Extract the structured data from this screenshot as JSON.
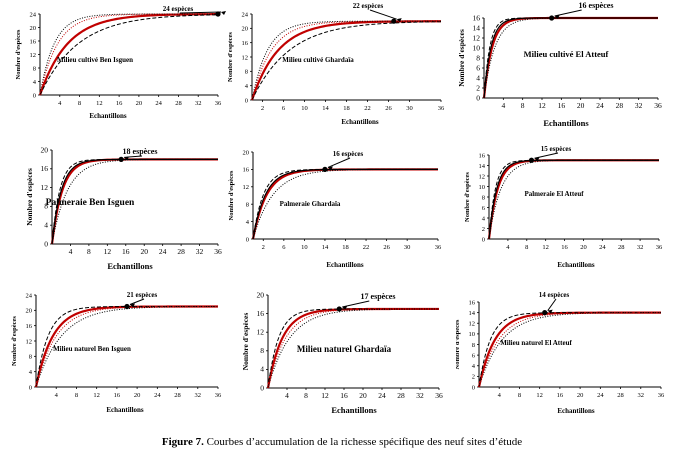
{
  "figure": {
    "caption_label": "Figure 7.",
    "caption_text": " Courbes d’accumulation de la richesse spécifique des neuf sites d’étude"
  },
  "colors": {
    "observed": "#c00000",
    "estimator1": "#000000",
    "estimator2": "#000000",
    "estimator3": "#c00000",
    "axis": "#000000"
  },
  "chart_data": [
    {
      "type": "line",
      "title": "Milieu cultivé Ben Isguen",
      "xlabel": "Echantillons",
      "ylabel": "Nombre d'espèces",
      "xlim": [
        0,
        36
      ],
      "xticks": [
        4,
        8,
        12,
        16,
        20,
        24,
        28,
        32,
        36
      ],
      "ylim": [
        0,
        24
      ],
      "yticks": [
        0,
        4,
        8,
        12,
        16,
        20,
        24
      ],
      "plateau": 24,
      "point": [
        36,
        24
      ],
      "annotation": "24 espèces",
      "series": [
        {
          "name": "observed",
          "style": "solid-red",
          "k": 0.18
        },
        {
          "name": "estimator 1",
          "style": "dashed-black",
          "k": 0.13
        },
        {
          "name": "estimator 2",
          "style": "dotted-black",
          "k": 0.35
        },
        {
          "name": "estimator 3",
          "style": "dotted-red",
          "k": 0.28
        }
      ]
    },
    {
      "type": "line",
      "title": "Milieu cultivé Ghardaïa",
      "xlabel": "Echantillons",
      "ylabel": "Nombre d'espèces",
      "xlim": [
        0,
        36
      ],
      "xticks": [
        2,
        6,
        10,
        14,
        18,
        22,
        26,
        30,
        36
      ],
      "ylim": [
        0,
        24
      ],
      "yticks": [
        0,
        4,
        8,
        12,
        16,
        20,
        24
      ],
      "plateau": 22,
      "point": [
        27,
        22
      ],
      "annotation": "22 espèces",
      "series": [
        {
          "name": "observed",
          "style": "solid-red",
          "k": 0.2
        },
        {
          "name": "estimator 1",
          "style": "dashed-black",
          "k": 0.14
        },
        {
          "name": "estimator 2",
          "style": "dotted-black",
          "k": 0.34
        },
        {
          "name": "estimator 3",
          "style": "dotted-red",
          "k": 0.27
        }
      ]
    },
    {
      "type": "line",
      "title": "Milieu cultivé El Atteuf",
      "xlabel": "Echantillons",
      "ylabel": "Nombre d'espèces",
      "xlim": [
        0,
        36
      ],
      "xticks": [
        4,
        8,
        12,
        16,
        20,
        24,
        28,
        32,
        36
      ],
      "ylim": [
        0,
        16
      ],
      "yticks": [
        0,
        2,
        4,
        6,
        8,
        10,
        12,
        14,
        16
      ],
      "plateau": 16,
      "point": [
        14,
        16
      ],
      "annotation": "16 espèces",
      "series": [
        {
          "name": "observed",
          "style": "solid-red",
          "k": 0.6
        },
        {
          "name": "estimator 1",
          "style": "dashed-black",
          "k": 0.85
        },
        {
          "name": "estimator 2",
          "style": "dotted-black",
          "k": 0.45
        },
        {
          "name": "estimator 3",
          "style": "solid-black",
          "k": 0.7
        }
      ]
    },
    {
      "type": "line",
      "title": "Palmeraie Ben Isguen",
      "xlabel": "Echantillons",
      "ylabel": "Nombre d'espèces",
      "xlim": [
        0,
        36
      ],
      "xticks": [
        4,
        8,
        12,
        16,
        20,
        24,
        28,
        32,
        36
      ],
      "ylim": [
        0,
        20
      ],
      "yticks": [
        0,
        4,
        8,
        12,
        16,
        20
      ],
      "plateau": 18,
      "point": [
        15,
        18
      ],
      "annotation": "18 espèces",
      "series": [
        {
          "name": "observed",
          "style": "solid-red",
          "k": 0.45
        },
        {
          "name": "estimator 1",
          "style": "dashed-black",
          "k": 0.6
        },
        {
          "name": "estimator 2",
          "style": "dotted-black",
          "k": 0.3
        },
        {
          "name": "estimator 3",
          "style": "solid-black",
          "k": 0.5
        }
      ]
    },
    {
      "type": "line",
      "title": "Palmeraie Ghardaïa",
      "xlabel": "Echantillons",
      "ylabel": "Nombre d'espèces",
      "xlim": [
        0,
        36
      ],
      "xticks": [
        2,
        6,
        10,
        14,
        18,
        22,
        26,
        30,
        36
      ],
      "ylim": [
        0,
        20
      ],
      "yticks": [
        0,
        4,
        8,
        12,
        16,
        20
      ],
      "plateau": 16,
      "point": [
        14,
        16
      ],
      "annotation": "16 espèces",
      "series": [
        {
          "name": "observed",
          "style": "solid-red",
          "k": 0.38
        },
        {
          "name": "estimator 1",
          "style": "dashed-black",
          "k": 0.5
        },
        {
          "name": "estimator 2",
          "style": "dotted-black",
          "k": 0.26
        },
        {
          "name": "estimator 3",
          "style": "solid-black",
          "k": 0.42
        }
      ]
    },
    {
      "type": "line",
      "title": "Palmeraie El Atteuf",
      "xlabel": "Echantillons",
      "ylabel": "Nombre d'espèces",
      "xlim": [
        0,
        36
      ],
      "xticks": [
        4,
        8,
        12,
        16,
        20,
        24,
        28,
        32,
        36
      ],
      "ylim": [
        0,
        16
      ],
      "yticks": [
        0,
        2,
        4,
        6,
        8,
        10,
        12,
        14,
        16
      ],
      "plateau": 15,
      "point": [
        9,
        15
      ],
      "annotation": "15 espèces",
      "series": [
        {
          "name": "observed",
          "style": "solid-red",
          "k": 0.55
        },
        {
          "name": "estimator 1",
          "style": "dashed-black",
          "k": 0.75
        },
        {
          "name": "estimator 2",
          "style": "dotted-black",
          "k": 0.4
        },
        {
          "name": "estimator 3",
          "style": "solid-black",
          "k": 0.62
        }
      ]
    },
    {
      "type": "line",
      "title": "Milieu naturel Ben Isguen",
      "xlabel": "Echantillons",
      "ylabel": "Nombre d'espèces",
      "xlim": [
        0,
        36
      ],
      "xticks": [
        4,
        8,
        12,
        16,
        20,
        24,
        28,
        32,
        36
      ],
      "ylim": [
        0,
        24
      ],
      "yticks": [
        0,
        4,
        8,
        12,
        16,
        20,
        24
      ],
      "plateau": 21,
      "point": [
        18,
        21
      ],
      "annotation": "21 espèces",
      "series": [
        {
          "name": "observed",
          "style": "solid-red",
          "k": 0.3
        },
        {
          "name": "estimator 1",
          "style": "dashed-black",
          "k": 0.42
        },
        {
          "name": "estimator 2",
          "style": "dotted-black",
          "k": 0.2
        },
        {
          "name": "estimator 3",
          "style": "dotted-red",
          "k": 0.25
        }
      ]
    },
    {
      "type": "line",
      "title": "Milieu naturel Ghardaïa",
      "xlabel": "Echantillons",
      "ylabel": "Nombre d'espèces",
      "xlim": [
        0,
        36
      ],
      "xticks": [
        4,
        8,
        12,
        16,
        20,
        24,
        28,
        32,
        36
      ],
      "ylim": [
        0,
        20
      ],
      "yticks": [
        0,
        4,
        8,
        12,
        16,
        20
      ],
      "plateau": 17,
      "point": [
        15,
        17
      ],
      "annotation": "17 espèces",
      "series": [
        {
          "name": "observed",
          "style": "solid-red",
          "k": 0.33
        },
        {
          "name": "estimator 1",
          "style": "dashed-black",
          "k": 0.45
        },
        {
          "name": "estimator 2",
          "style": "dotted-black",
          "k": 0.22
        },
        {
          "name": "estimator 3",
          "style": "dotted-red",
          "k": 0.27
        }
      ]
    },
    {
      "type": "line",
      "title": "Milieu naturel El Atteuf",
      "xlabel": "Echantillons",
      "ylabel": "Nombre d'espèces",
      "xlim": [
        0,
        36
      ],
      "xticks": [
        4,
        8,
        12,
        16,
        20,
        24,
        28,
        32,
        36
      ],
      "ylim": [
        0,
        16
      ],
      "yticks": [
        0,
        2,
        4,
        6,
        8,
        10,
        12,
        14,
        16
      ],
      "plateau": 14,
      "point": [
        13,
        14
      ],
      "annotation": "14 espèces",
      "series": [
        {
          "name": "observed",
          "style": "solid-red",
          "k": 0.32
        },
        {
          "name": "estimator 1",
          "style": "dashed-black",
          "k": 0.45
        },
        {
          "name": "estimator 2",
          "style": "dotted-black",
          "k": 0.22
        },
        {
          "name": "estimator 3",
          "style": "dotted-red",
          "k": 0.26
        }
      ]
    }
  ]
}
